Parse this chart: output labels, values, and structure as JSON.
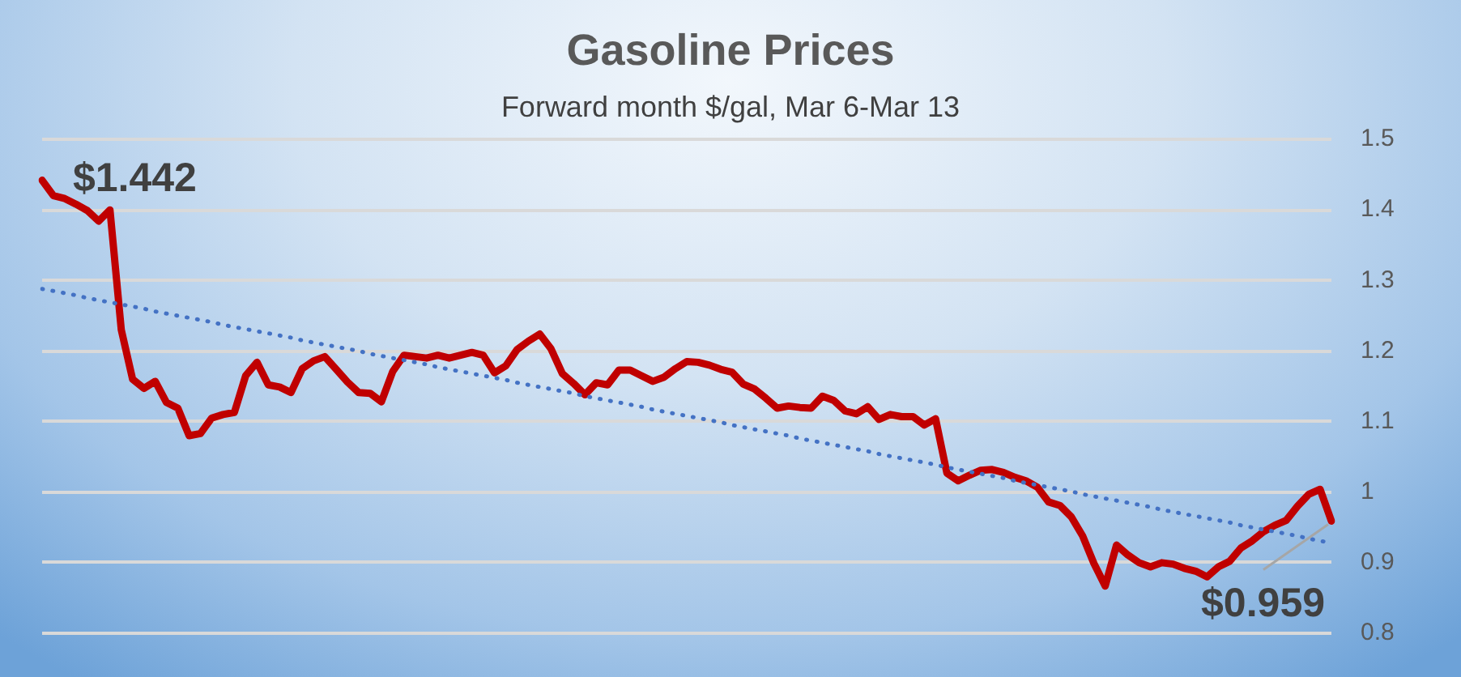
{
  "chart_data": {
    "type": "line",
    "title": "Gasoline Prices",
    "subtitle": "Forward month $/gal, Mar 6-Mar 13",
    "categories": [
      null,
      null,
      null,
      null,
      null,
      null,
      null,
      null,
      null,
      null,
      null,
      null,
      null,
      null,
      null,
      null,
      null,
      null,
      null,
      null,
      null,
      null,
      null,
      null,
      null,
      null,
      null,
      null,
      null,
      null,
      null,
      null,
      null,
      null,
      null,
      null,
      null,
      null,
      null,
      null,
      null,
      null,
      null,
      null,
      null,
      null,
      null,
      null,
      null,
      null,
      null,
      null,
      null,
      null,
      null,
      null,
      null,
      null,
      null,
      null,
      null,
      null,
      null,
      null,
      null,
      null,
      null,
      null,
      null,
      null,
      null,
      null,
      null,
      null,
      null,
      null,
      null,
      null,
      null,
      null,
      null,
      null,
      null,
      null,
      null,
      null,
      null,
      null,
      null,
      null,
      null,
      null,
      null,
      null,
      null,
      null,
      null,
      null,
      null,
      null,
      null,
      null,
      null,
      null,
      null,
      null,
      null,
      null,
      null,
      null,
      null,
      null,
      null,
      null,
      null
    ],
    "series": [
      {
        "color": "#c00000",
        "values": [
          1.442,
          1.42,
          1.416,
          1.408,
          1.399,
          1.384,
          1.4,
          1.23,
          1.16,
          1.147,
          1.157,
          1.127,
          1.119,
          1.08,
          1.083,
          1.105,
          1.11,
          1.113,
          1.165,
          1.184,
          1.152,
          1.149,
          1.141,
          1.175,
          1.186,
          1.192,
          1.174,
          1.156,
          1.141,
          1.14,
          1.128,
          1.171,
          1.194,
          1.192,
          1.19,
          1.194,
          1.19,
          1.194,
          1.198,
          1.194,
          1.169,
          1.179,
          1.202,
          1.214,
          1.224,
          1.203,
          1.168,
          1.154,
          1.138,
          1.155,
          1.152,
          1.173,
          1.173,
          1.165,
          1.157,
          1.163,
          1.175,
          1.185,
          1.184,
          1.18,
          1.174,
          1.17,
          1.153,
          1.146,
          1.133,
          1.119,
          1.122,
          1.12,
          1.119,
          1.136,
          1.13,
          1.115,
          1.111,
          1.121,
          1.103,
          1.11,
          1.107,
          1.107,
          1.095,
          1.104,
          1.027,
          1.016,
          1.024,
          1.031,
          1.032,
          1.028,
          1.021,
          1.016,
          1.007,
          0.986,
          0.981,
          0.965,
          0.938,
          0.899,
          0.867,
          0.925,
          0.911,
          0.9,
          0.894,
          0.9,
          0.898,
          0.892,
          0.888,
          0.88,
          0.894,
          0.902,
          0.921,
          0.931,
          0.944,
          0.953,
          0.96,
          0.98,
          0.997,
          1.004,
          0.959
        ]
      },
      {
        "type": "line",
        "line_style": "dotted",
        "color": "#4472c4",
        "values": [
          1.288,
          1.285,
          1.282,
          1.279,
          1.275,
          1.272,
          1.269,
          1.266,
          1.263,
          1.26,
          1.256,
          1.253,
          1.25,
          1.247,
          1.244,
          1.241,
          1.237,
          1.234,
          1.231,
          1.228,
          1.225,
          1.222,
          1.219,
          1.215,
          1.212,
          1.209,
          1.206,
          1.203,
          1.2,
          1.196,
          1.193,
          1.19,
          1.187,
          1.184,
          1.181,
          1.177,
          1.174,
          1.171,
          1.168,
          1.165,
          1.162,
          1.159,
          1.155,
          1.152,
          1.149,
          1.146,
          1.143,
          1.14,
          1.136,
          1.133,
          1.13,
          1.127,
          1.124,
          1.121,
          1.117,
          1.114,
          1.111,
          1.108,
          1.105,
          1.102,
          1.099,
          1.095,
          1.092,
          1.089,
          1.086,
          1.083,
          1.08,
          1.076,
          1.073,
          1.07,
          1.067,
          1.064,
          1.061,
          1.058,
          1.054,
          1.051,
          1.048,
          1.045,
          1.042,
          1.039,
          1.035,
          1.032,
          1.029,
          1.026,
          1.023,
          1.02,
          1.016,
          1.013,
          1.01,
          1.007,
          1.004,
          1.001,
          0.997,
          0.994,
          0.991,
          0.988,
          0.985,
          0.982,
          0.979,
          0.975,
          0.972,
          0.969,
          0.966,
          0.963,
          0.96,
          0.957,
          0.953,
          0.95,
          0.947,
          0.944,
          0.941,
          0.938,
          0.934,
          0.931,
          0.928
        ]
      }
    ],
    "ylim": [
      0.8,
      1.5
    ],
    "yticks": [
      0.8,
      0.9,
      1,
      1.1,
      1.2,
      1.3,
      1.4,
      1.5
    ],
    "grid": "y",
    "tick_labels": "y",
    "marker": "none",
    "line_style": "solid",
    "annotations": [
      "$1.442",
      "$0.959"
    ]
  }
}
